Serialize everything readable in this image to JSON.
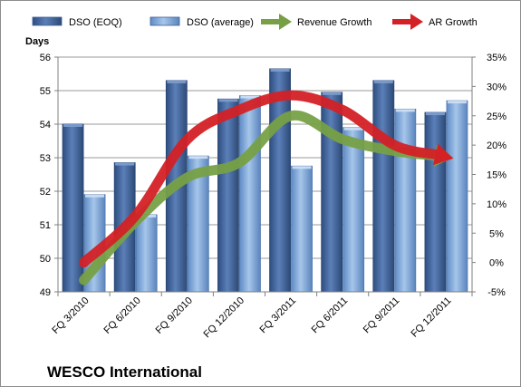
{
  "chart_data": {
    "type": "bar",
    "categories": [
      "FQ 3/2010",
      "FQ 6/2010",
      "FQ 9/2010",
      "FQ 12/2010",
      "FQ 3/2011",
      "FQ 6/2011",
      "FQ 9/2011",
      "FQ 12/2011"
    ],
    "ylabel": "Days",
    "ylim": [
      49,
      56
    ],
    "y_ticks": [
      "49",
      "50",
      "51",
      "52",
      "53",
      "54",
      "55",
      "56"
    ],
    "y2lim": [
      -5,
      35
    ],
    "y2_ticks": [
      "-5%",
      "0%",
      "5%",
      "10%",
      "15%",
      "20%",
      "25%",
      "30%",
      "35%"
    ],
    "series": [
      {
        "name": "DSO (EOQ)",
        "kind": "bar",
        "axis": "left",
        "color": "#4a6ea8",
        "values": [
          54.0,
          52.85,
          55.3,
          54.75,
          55.65,
          54.95,
          55.3,
          54.35
        ]
      },
      {
        "name": "DSO (average)",
        "kind": "bar",
        "axis": "left",
        "color": "#8cb2e0",
        "values": [
          51.9,
          51.3,
          53.05,
          54.85,
          52.75,
          53.9,
          54.45,
          54.7
        ]
      },
      {
        "name": "Revenue Growth",
        "kind": "line",
        "axis": "right",
        "color": "#77a046",
        "values": [
          -3,
          7,
          14.5,
          17,
          25,
          21,
          19,
          18
        ]
      },
      {
        "name": "AR Growth",
        "kind": "line",
        "axis": "right",
        "color": "#d42126",
        "values": [
          0,
          8,
          21,
          26,
          28.5,
          26,
          20,
          18
        ]
      }
    ],
    "legend_position": "top",
    "grid": true
  },
  "brand": "WESCO International"
}
